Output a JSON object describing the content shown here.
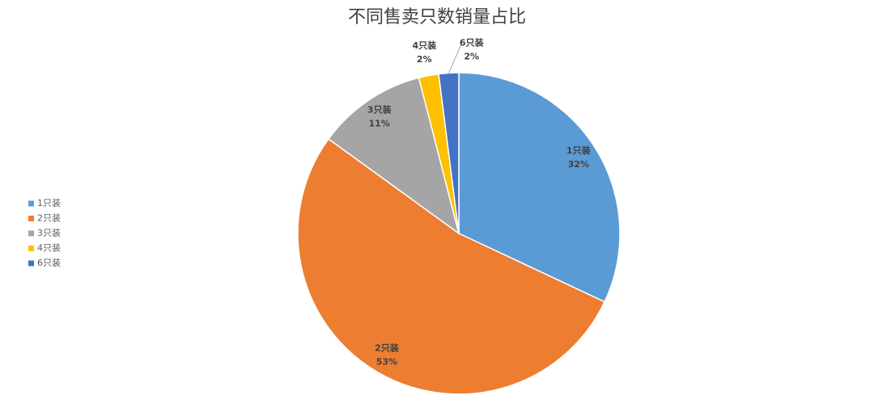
{
  "chart_data": {
    "type": "pie",
    "title": "不同售卖只数销量占比",
    "categories": [
      "1只装",
      "2只装",
      "3只装",
      "4只装",
      "6只装"
    ],
    "values": [
      32,
      53,
      11,
      2,
      2
    ],
    "value_labels": [
      "32%",
      "53%",
      "11%",
      "2%",
      "2%"
    ],
    "colors": [
      "#5b9bd5",
      "#ed7d31",
      "#a5a5a5",
      "#ffc000",
      "#4472c4"
    ],
    "legend": "left"
  }
}
